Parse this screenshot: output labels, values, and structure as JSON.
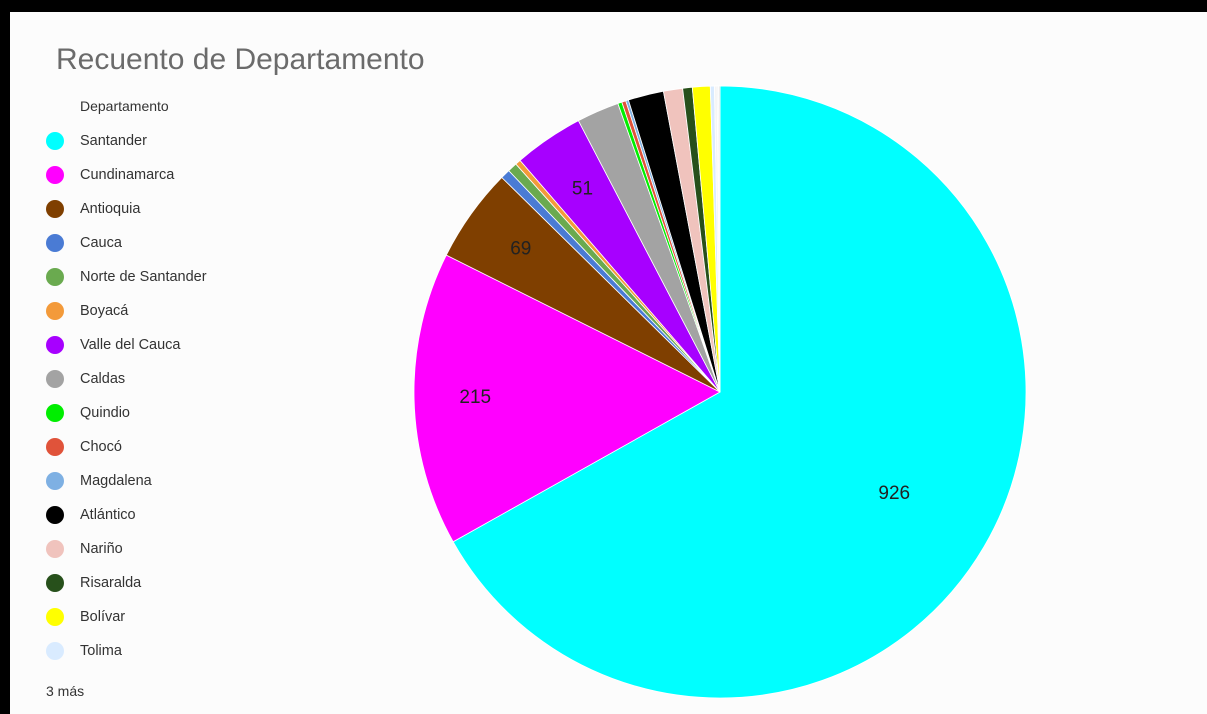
{
  "title": "Recuento de Departamento",
  "legend": {
    "title": "Departamento",
    "more": "3 más"
  },
  "chart_data": {
    "type": "pie",
    "title": "Recuento de Departamento",
    "legend_title": "Departamento",
    "legend_position": "left",
    "slices": [
      {
        "name": "Santander",
        "value": 926,
        "color": "#00ffff",
        "label": "926"
      },
      {
        "name": "Cundinamarca",
        "value": 215,
        "color": "#ff00ff",
        "label": "215"
      },
      {
        "name": "Antioquia",
        "value": 69,
        "color": "#7f3f00",
        "label": "69"
      },
      {
        "name": "Cauca",
        "value": 7,
        "color": "#4a7bd4",
        "label": ""
      },
      {
        "name": "Norte de Santander",
        "value": 7,
        "color": "#6aaa4f",
        "label": ""
      },
      {
        "name": "Boyacá",
        "value": 4,
        "color": "#f39a3a",
        "label": ""
      },
      {
        "name": "Valle del Cauca",
        "value": 51,
        "color": "#a700ff",
        "label": "51"
      },
      {
        "name": "Caldas",
        "value": 31,
        "color": "#a3a3a3",
        "label": ""
      },
      {
        "name": "Quindio",
        "value": 3,
        "color": "#00ee00",
        "label": ""
      },
      {
        "name": "Chocó",
        "value": 3,
        "color": "#e0533a",
        "label": ""
      },
      {
        "name": "Magdalena",
        "value": 2,
        "color": "#7eb0e3",
        "label": ""
      },
      {
        "name": "Atlántico",
        "value": 26,
        "color": "#000000",
        "label": ""
      },
      {
        "name": "Nariño",
        "value": 14,
        "color": "#f0c3bd",
        "label": ""
      },
      {
        "name": "Risaralda",
        "value": 7,
        "color": "#27501b",
        "label": ""
      },
      {
        "name": "Bolívar",
        "value": 13,
        "color": "#ffff00",
        "label": ""
      },
      {
        "name": "Tolima",
        "value": 3,
        "color": "#d9ebff",
        "label": ""
      },
      {
        "name": "",
        "value": 2,
        "color": "#f5f5f5",
        "label": ""
      },
      {
        "name": "",
        "value": 1,
        "color": "#eaeaea",
        "label": ""
      },
      {
        "name": "",
        "value": 1,
        "color": "#dddddd",
        "label": ""
      }
    ]
  }
}
